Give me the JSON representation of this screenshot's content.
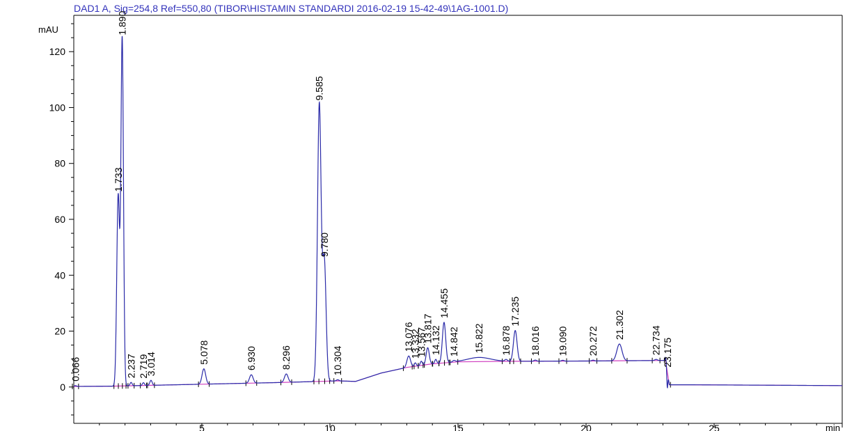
{
  "chart_data": {
    "type": "line",
    "title": "DAD1 A, Sig=254,8 Ref=550,80 (TIBOR\\HISTAMIN STANDARDI 2016-02-19 15-42-49\\1AG-1001.D)",
    "ylabel": "mAU",
    "xlabel": "min",
    "xlim": [
      0,
      30
    ],
    "ylim": [
      -13,
      133
    ],
    "x_ticks": [
      5,
      10,
      15,
      20,
      25
    ],
    "y_ticks": [
      0,
      20,
      40,
      60,
      80,
      100,
      120
    ],
    "grid": false,
    "colors": {
      "signal": "#2a2aa8",
      "baseline": "#d040c0",
      "title": "#3333bb"
    },
    "peaks": [
      {
        "rt": 0.066,
        "label": "0.066",
        "height": 0.3,
        "width": 0.04
      },
      {
        "rt": 1.733,
        "label": "1.733",
        "height": 68,
        "width": 0.055
      },
      {
        "rt": 1.89,
        "label": "1.890",
        "height": 124,
        "width": 0.05
      },
      {
        "rt": 2.237,
        "label": "2.237",
        "height": 1.2,
        "width": 0.04
      },
      {
        "rt": 2.719,
        "label": "2.719",
        "height": 1.0,
        "width": 0.04
      },
      {
        "rt": 3.014,
        "label": "3.014",
        "height": 1.8,
        "width": 0.045
      },
      {
        "rt": 5.078,
        "label": "5.078",
        "height": 5.5,
        "width": 0.07
      },
      {
        "rt": 6.93,
        "label": "6.930",
        "height": 3.0,
        "width": 0.07
      },
      {
        "rt": 8.296,
        "label": "8.296",
        "height": 3.0,
        "width": 0.07
      },
      {
        "rt": 9.585,
        "label": "9.585",
        "height": 99,
        "width": 0.07
      },
      {
        "rt": 9.78,
        "label": "9.780",
        "height": 43,
        "width": 0.07
      },
      {
        "rt": 10.304,
        "label": "10.304",
        "height": 0.4,
        "width": 0.05
      },
      {
        "rt": 13.076,
        "label": "13.076",
        "height": 4.0,
        "width": 0.07
      },
      {
        "rt": 13.332,
        "label": "13.332",
        "height": 1.2,
        "width": 0.04
      },
      {
        "rt": 13.567,
        "label": "13.567",
        "height": 1.5,
        "width": 0.04
      },
      {
        "rt": 13.817,
        "label": "13.817",
        "height": 6.0,
        "width": 0.06
      },
      {
        "rt": 14.132,
        "label": "14.132",
        "height": 1.5,
        "width": 0.04
      },
      {
        "rt": 14.455,
        "label": "14.455",
        "height": 14.5,
        "width": 0.065
      },
      {
        "rt": 14.842,
        "label": "14.842",
        "height": 0.5,
        "width": 0.05
      },
      {
        "rt": 15.822,
        "label": "15.822",
        "height": 1.5,
        "width": 0.45
      },
      {
        "rt": 16.878,
        "label": "16.878",
        "height": 0.6,
        "width": 0.05
      },
      {
        "rt": 17.235,
        "label": "17.235",
        "height": 11.0,
        "width": 0.07
      },
      {
        "rt": 18.016,
        "label": "18.016",
        "height": 0.4,
        "width": 0.05
      },
      {
        "rt": 19.09,
        "label": "19.090",
        "height": 0.3,
        "width": 0.05
      },
      {
        "rt": 20.272,
        "label": "20.272",
        "height": 0.3,
        "width": 0.05
      },
      {
        "rt": 21.302,
        "label": "21.302",
        "height": 6.0,
        "width": 0.1
      },
      {
        "rt": 22.734,
        "label": "22.734",
        "height": 0.4,
        "width": 0.05
      },
      {
        "rt": 23.175,
        "label": "23.175",
        "height": 0.3,
        "width": 0.04
      }
    ],
    "baseline": {
      "x": [
        0,
        1.5,
        3,
        5,
        8,
        9.2,
        10.3,
        11.0,
        12.0,
        13.0,
        14.0,
        15.0,
        17.0,
        20.0,
        23.0,
        23.1,
        23.25,
        24.0,
        30.0
      ],
      "y": [
        0.2,
        0.3,
        0.6,
        1.0,
        1.6,
        1.9,
        2.2,
        2.0,
        5.0,
        7.0,
        8.3,
        9.0,
        9.2,
        9.3,
        9.5,
        9.6,
        0.8,
        0.8,
        0.5
      ]
    },
    "disturbance": {
      "x": 23.17,
      "min": -6.0,
      "max": 1.5
    }
  }
}
